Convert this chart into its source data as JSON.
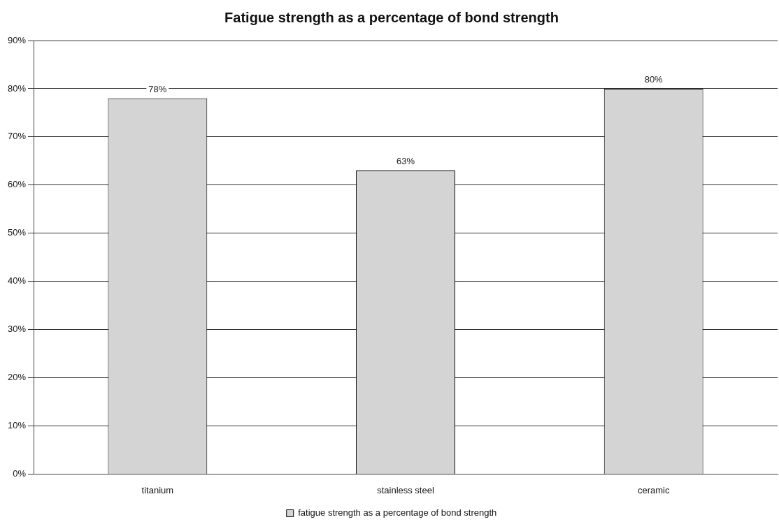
{
  "chart_data": {
    "type": "bar",
    "title": "Fatigue strength as a percentage of bond strength",
    "categories": [
      "titanium",
      "stainless steel",
      "ceramic"
    ],
    "series": [
      {
        "name": "fatigue strength as a percentage of bond strength",
        "color": "#d4d4d4",
        "values": [
          78,
          63,
          80
        ],
        "value_labels": [
          "78%",
          "63%",
          "80%"
        ]
      }
    ],
    "ylim": [
      0,
      90
    ],
    "yticks": [
      {
        "value": 0,
        "label": "0%"
      },
      {
        "value": 10,
        "label": "10%"
      },
      {
        "value": 20,
        "label": "20%"
      },
      {
        "value": 30,
        "label": "30%"
      },
      {
        "value": 40,
        "label": "40%"
      },
      {
        "value": 50,
        "label": "50%"
      },
      {
        "value": 60,
        "label": "60%"
      },
      {
        "value": 70,
        "label": "70%"
      },
      {
        "value": 80,
        "label": "80%"
      },
      {
        "value": 90,
        "label": "90%"
      }
    ],
    "grid": "y",
    "legend": "bottom"
  }
}
